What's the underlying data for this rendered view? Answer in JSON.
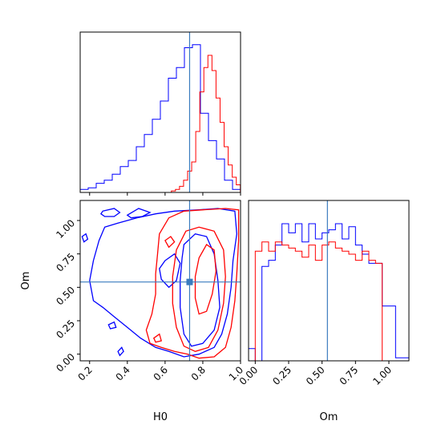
{
  "chart_data": [
    {
      "type": "histogram",
      "panel": "H0 marginal",
      "xlim": [
        0.15,
        1.0
      ],
      "truth": 0.73,
      "bin_edges": [
        0.15,
        0.1925,
        0.235,
        0.2775,
        0.32,
        0.3625,
        0.405,
        0.4475,
        0.49,
        0.5325,
        0.575,
        0.6175,
        0.66,
        0.7025,
        0.745,
        0.7875,
        0.83,
        0.8725,
        0.915,
        0.9575,
        1.0
      ],
      "series": [
        {
          "color": "#0000ff",
          "values": [
            0.02,
            0.03,
            0.06,
            0.08,
            0.12,
            0.17,
            0.21,
            0.3,
            0.38,
            0.48,
            0.6,
            0.75,
            0.82,
            0.95,
            0.97,
            0.52,
            0.34,
            0.22,
            0.08,
            0.02
          ]
        },
        {
          "color": "#ff0000",
          "values": [
            0.0,
            0.0,
            0.0,
            0.0,
            0.0,
            0.0,
            0.0,
            0.0,
            0.0,
            0.01,
            0.02,
            0.04,
            0.08,
            0.14,
            0.2,
            0.4,
            0.66,
            0.82,
            0.9,
            0.8,
            0.62,
            0.46,
            0.3,
            0.18,
            0.1,
            0.05
          ]
        },
        {
          "color": "#ff0000",
          "note_edges": "fine",
          "values": []
        }
      ]
    },
    {
      "type": "contour",
      "panel": "Om vs H0",
      "xlabel": "H0",
      "ylabel": "Om",
      "xlim": [
        0.15,
        1.0
      ],
      "ylim": [
        -0.05,
        1.15
      ],
      "xticks": [
        "0.2",
        "0.4",
        "0.6",
        "0.8",
        "1.0"
      ],
      "yticks": [
        "0.00",
        "0.25",
        "0.50",
        "0.75",
        "1.00"
      ],
      "xtick_values": [
        0.2,
        0.4,
        0.6,
        0.8,
        1.0
      ],
      "ytick_values": [
        0.0,
        0.25,
        0.5,
        0.75,
        1.0
      ],
      "truth": [
        0.73,
        0.54
      ],
      "contours": [
        {
          "color": "#0000ff",
          "points": [
            [
              0.28,
              0.95
            ],
            [
              0.35,
              0.98
            ],
            [
              0.45,
              1.02
            ],
            [
              0.55,
              1.05
            ],
            [
              0.65,
              1.07
            ],
            [
              0.78,
              1.08
            ],
            [
              0.88,
              1.09
            ],
            [
              0.97,
              1.07
            ],
            [
              0.98,
              0.9
            ],
            [
              0.96,
              0.7
            ],
            [
              0.95,
              0.5
            ],
            [
              0.93,
              0.3
            ],
            [
              0.9,
              0.15
            ],
            [
              0.86,
              0.05
            ],
            [
              0.78,
              0.0
            ],
            [
              0.7,
              -0.02
            ],
            [
              0.62,
              0.02
            ],
            [
              0.55,
              0.05
            ],
            [
              0.47,
              0.12
            ],
            [
              0.4,
              0.2
            ],
            [
              0.33,
              0.28
            ],
            [
              0.27,
              0.35
            ],
            [
              0.22,
              0.4
            ],
            [
              0.2,
              0.55
            ],
            [
              0.22,
              0.7
            ],
            [
              0.25,
              0.85
            ],
            [
              0.28,
              0.95
            ]
          ]
        },
        {
          "color": "#0000ff",
          "points": [
            [
              0.7,
              0.82
            ],
            [
              0.76,
              0.9
            ],
            [
              0.82,
              0.88
            ],
            [
              0.86,
              0.75
            ],
            [
              0.88,
              0.55
            ],
            [
              0.89,
              0.35
            ],
            [
              0.86,
              0.18
            ],
            [
              0.8,
              0.08
            ],
            [
              0.74,
              0.06
            ],
            [
              0.7,
              0.15
            ],
            [
              0.68,
              0.35
            ],
            [
              0.68,
              0.55
            ],
            [
              0.69,
              0.72
            ],
            [
              0.7,
              0.82
            ]
          ]
        },
        {
          "color": "#0000ff",
          "points": [
            [
              0.6,
              0.7
            ],
            [
              0.65,
              0.75
            ],
            [
              0.68,
              0.68
            ],
            [
              0.66,
              0.55
            ],
            [
              0.62,
              0.5
            ],
            [
              0.58,
              0.56
            ],
            [
              0.57,
              0.64
            ],
            [
              0.6,
              0.7
            ]
          ]
        },
        {
          "color": "#0000ff",
          "points": [
            [
              0.27,
              1.07
            ],
            [
              0.33,
              1.09
            ],
            [
              0.36,
              1.06
            ],
            [
              0.33,
              1.03
            ],
            [
              0.28,
              1.03
            ],
            [
              0.26,
              1.05
            ],
            [
              0.27,
              1.07
            ]
          ]
        },
        {
          "color": "#0000ff",
          "points": [
            [
              0.4,
              1.04
            ],
            [
              0.46,
              1.09
            ],
            [
              0.52,
              1.06
            ],
            [
              0.48,
              1.03
            ],
            [
              0.42,
              1.02
            ],
            [
              0.4,
              1.04
            ]
          ]
        },
        {
          "color": "#0000ff",
          "points": [
            [
              0.16,
              0.88
            ],
            [
              0.18,
              0.9
            ],
            [
              0.19,
              0.86
            ],
            [
              0.17,
              0.84
            ],
            [
              0.16,
              0.88
            ]
          ]
        },
        {
          "color": "#0000ff",
          "points": [
            [
              0.3,
              0.22
            ],
            [
              0.33,
              0.24
            ],
            [
              0.34,
              0.2
            ],
            [
              0.31,
              0.19
            ],
            [
              0.3,
              0.22
            ]
          ]
        },
        {
          "color": "#0000ff",
          "points": [
            [
              0.35,
              0.02
            ],
            [
              0.37,
              0.05
            ],
            [
              0.38,
              0.02
            ],
            [
              0.36,
              -0.01
            ],
            [
              0.35,
              0.02
            ]
          ]
        },
        {
          "color": "#ff0000",
          "points": [
            [
              0.57,
              0.9
            ],
            [
              0.62,
              1.02
            ],
            [
              0.7,
              1.07
            ],
            [
              0.8,
              1.08
            ],
            [
              0.92,
              1.09
            ],
            [
              0.99,
              1.08
            ],
            [
              0.99,
              0.85
            ],
            [
              0.98,
              0.6
            ],
            [
              0.97,
              0.4
            ],
            [
              0.95,
              0.2
            ],
            [
              0.92,
              0.05
            ],
            [
              0.86,
              -0.02
            ],
            [
              0.78,
              -0.03
            ],
            [
              0.72,
              0.0
            ],
            [
              0.65,
              0.02
            ],
            [
              0.58,
              0.05
            ],
            [
              0.52,
              0.08
            ],
            [
              0.5,
              0.18
            ],
            [
              0.53,
              0.3
            ],
            [
              0.55,
              0.45
            ],
            [
              0.55,
              0.6
            ],
            [
              0.56,
              0.75
            ],
            [
              0.57,
              0.9
            ]
          ]
        },
        {
          "color": "#ff0000",
          "points": [
            [
              0.66,
              0.78
            ],
            [
              0.71,
              0.92
            ],
            [
              0.78,
              0.95
            ],
            [
              0.86,
              0.92
            ],
            [
              0.91,
              0.78
            ],
            [
              0.92,
              0.58
            ],
            [
              0.91,
              0.38
            ],
            [
              0.88,
              0.18
            ],
            [
              0.83,
              0.05
            ],
            [
              0.76,
              0.02
            ],
            [
              0.7,
              0.06
            ],
            [
              0.66,
              0.2
            ],
            [
              0.64,
              0.38
            ],
            [
              0.64,
              0.58
            ],
            [
              0.66,
              0.78
            ]
          ]
        },
        {
          "color": "#ff0000",
          "points": [
            [
              0.78,
              0.72
            ],
            [
              0.82,
              0.82
            ],
            [
              0.86,
              0.78
            ],
            [
              0.87,
              0.62
            ],
            [
              0.85,
              0.45
            ],
            [
              0.82,
              0.32
            ],
            [
              0.78,
              0.3
            ],
            [
              0.76,
              0.42
            ],
            [
              0.76,
              0.58
            ],
            [
              0.78,
              0.72
            ]
          ]
        },
        {
          "color": "#ff0000",
          "points": [
            [
              0.6,
              0.85
            ],
            [
              0.63,
              0.88
            ],
            [
              0.65,
              0.84
            ],
            [
              0.62,
              0.8
            ],
            [
              0.6,
              0.85
            ]
          ]
        },
        {
          "color": "#ff0000",
          "points": [
            [
              0.54,
              0.12
            ],
            [
              0.57,
              0.15
            ],
            [
              0.58,
              0.1
            ],
            [
              0.55,
              0.09
            ],
            [
              0.54,
              0.12
            ]
          ]
        }
      ]
    },
    {
      "type": "histogram",
      "panel": "Om marginal",
      "xlabel": "Om",
      "xlim": [
        -0.05,
        1.15
      ],
      "xticks": [
        "0.00",
        "0.25",
        "0.50",
        "0.75",
        "1.00"
      ],
      "xtick_values": [
        0.0,
        0.25,
        0.5,
        0.75,
        1.0
      ],
      "truth": 0.54,
      "bin_edges": [
        -0.05,
        0.0,
        0.05,
        0.1,
        0.15,
        0.2,
        0.25,
        0.3,
        0.35,
        0.4,
        0.45,
        0.5,
        0.55,
        0.6,
        0.65,
        0.7,
        0.75,
        0.8,
        0.85,
        0.9,
        0.95,
        1.0,
        1.05,
        1.1,
        1.15
      ],
      "series": [
        {
          "color": "#0000ff",
          "values": [
            0.08,
            0.0,
            0.62,
            0.66,
            0.76,
            0.9,
            0.84,
            0.9,
            0.78,
            0.9,
            0.8,
            0.84,
            0.86,
            0.9,
            0.8,
            0.88,
            0.76,
            0.7,
            0.64,
            0.64,
            0.36,
            0.36,
            0.02,
            0.02
          ]
        },
        {
          "color": "#ff0000",
          "values": [
            0.0,
            0.72,
            0.78,
            0.72,
            0.78,
            0.76,
            0.74,
            0.72,
            0.68,
            0.76,
            0.66,
            0.76,
            0.78,
            0.74,
            0.72,
            0.7,
            0.66,
            0.72,
            0.66,
            0.64,
            0.0,
            0.0,
            0.0,
            0.0
          ]
        }
      ]
    }
  ]
}
